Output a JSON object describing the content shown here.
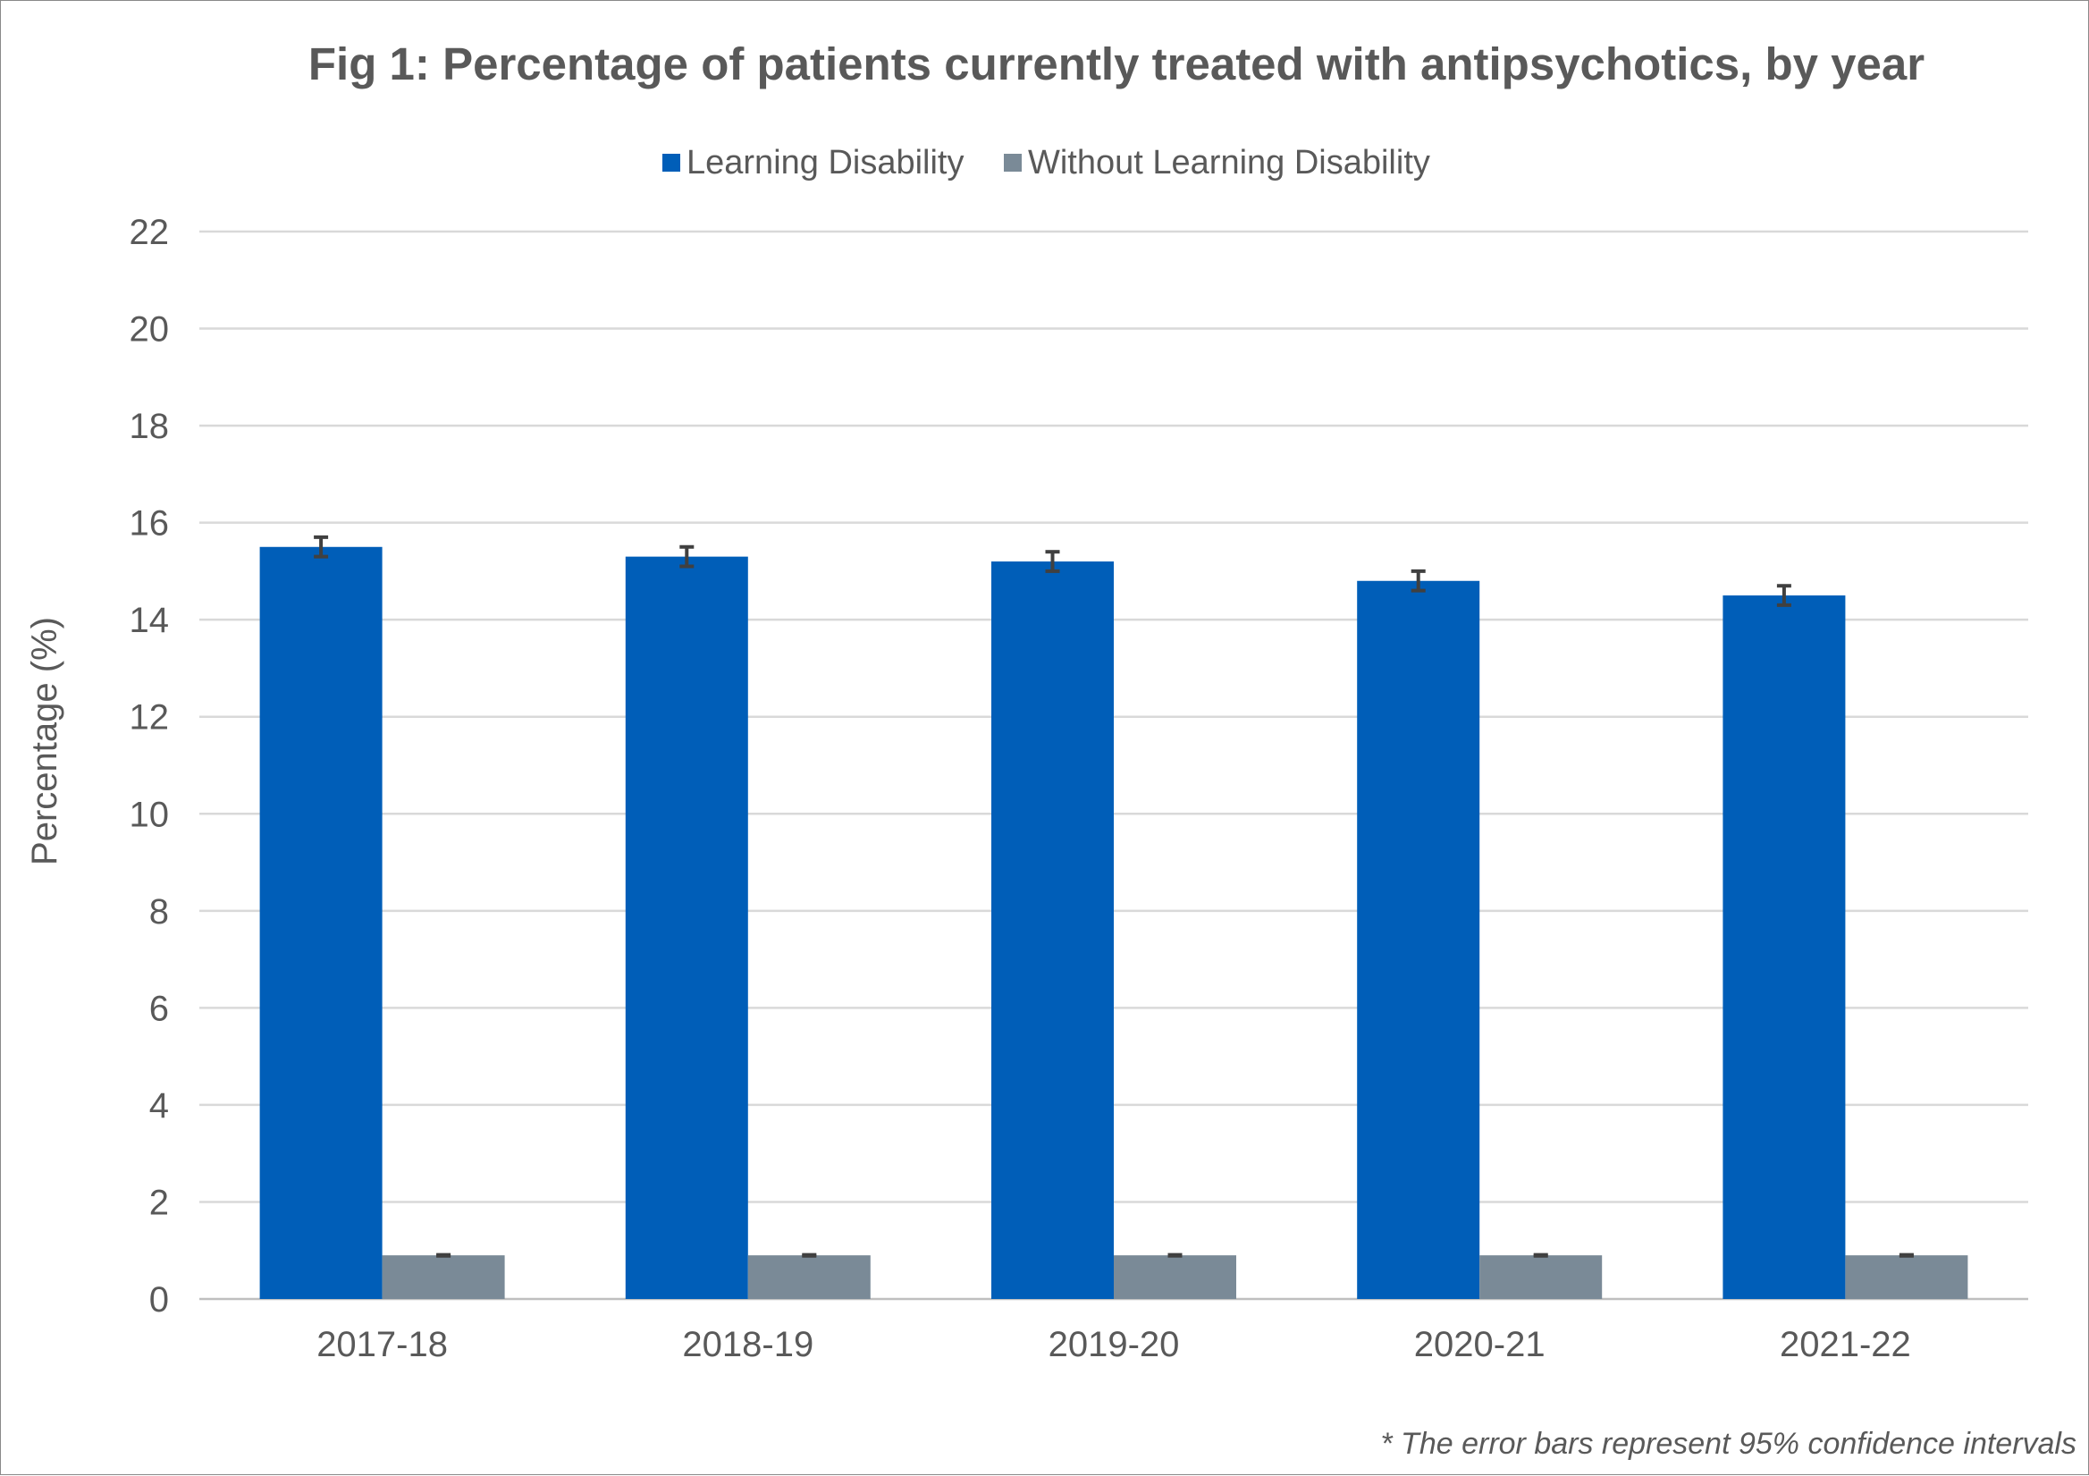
{
  "chart_data": {
    "type": "bar",
    "title": "Fig 1: Percentage of patients currently treated with antipsychotics, by year",
    "ylabel": "Percentage (%)",
    "xlabel": "",
    "ylim": [
      0,
      22
    ],
    "y_ticks": [
      0,
      2,
      4,
      6,
      8,
      10,
      12,
      14,
      16,
      18,
      20,
      22
    ],
    "grid": true,
    "legend_position": "top-center",
    "categories": [
      "2017-18",
      "2018-19",
      "2019-20",
      "2020-21",
      "2021-22"
    ],
    "series": [
      {
        "name": "Learning Disability",
        "color": "#005EB8",
        "values": [
          15.5,
          15.3,
          15.2,
          14.8,
          14.5
        ],
        "error_low": [
          15.3,
          15.1,
          15.0,
          14.6,
          14.3
        ],
        "error_high": [
          15.7,
          15.5,
          15.4,
          15.0,
          14.7
        ]
      },
      {
        "name": "Without Learning Disability",
        "color": "#7A8A97",
        "values": [
          0.9,
          0.9,
          0.9,
          0.9,
          0.9
        ],
        "error_low": [
          0.89,
          0.89,
          0.89,
          0.89,
          0.89
        ],
        "error_high": [
          0.91,
          0.91,
          0.91,
          0.91,
          0.91
        ]
      }
    ],
    "footnote": "* The error bars represent 95% confidence intervals"
  }
}
